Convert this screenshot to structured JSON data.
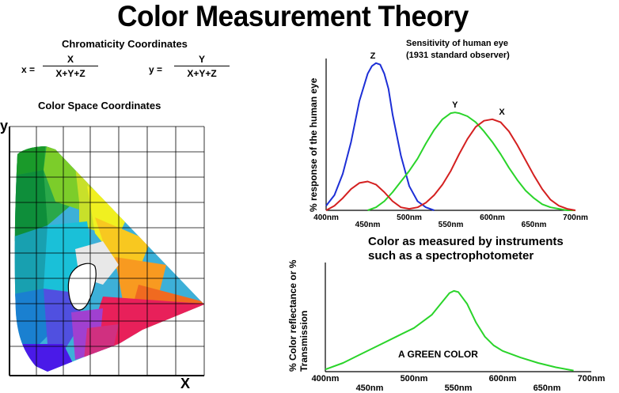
{
  "title": "Color Measurement Theory",
  "chromaticity": {
    "heading": "Chromaticity Coordinates",
    "x_lhs": "x =",
    "x_num": "X",
    "x_den": "X+Y+Z",
    "y_lhs": "y =",
    "y_num": "Y",
    "y_den": "X+Y+Z"
  },
  "color_space": {
    "heading": "Color Space Coordinates",
    "y_axis": "y",
    "x_axis": "X"
  },
  "chart_data": [
    {
      "type": "line",
      "title": "Sensitivity of human eye",
      "subtitle": "(1931 standard observer)",
      "ylabel": "% response of the human eye",
      "xlabel": "",
      "x_tick_labels": [
        "400nm",
        "450nm",
        "500nm",
        "550nm",
        "600nm",
        "650nm",
        "700nm"
      ],
      "x_ticks": [
        400,
        450,
        500,
        550,
        600,
        650,
        700
      ],
      "xlim": [
        400,
        700
      ],
      "ylim": [
        0,
        1.0
      ],
      "series": [
        {
          "name": "Z",
          "color": "#1d2fd6",
          "x": [
            400,
            410,
            420,
            430,
            440,
            450,
            455,
            460,
            465,
            470,
            475,
            480,
            490,
            500,
            510,
            520,
            530
          ],
          "y": [
            0.03,
            0.1,
            0.24,
            0.45,
            0.72,
            0.9,
            0.95,
            0.97,
            0.96,
            0.9,
            0.8,
            0.63,
            0.36,
            0.16,
            0.06,
            0.02,
            0.0
          ]
        },
        {
          "name": "Y",
          "color": "#2ad42a",
          "x": [
            450,
            460,
            470,
            480,
            490,
            500,
            510,
            520,
            530,
            540,
            550,
            555,
            560,
            570,
            580,
            590,
            600,
            610,
            620,
            630,
            640,
            650,
            660,
            670,
            680,
            690,
            700
          ],
          "y": [
            0.0,
            0.02,
            0.06,
            0.12,
            0.19,
            0.26,
            0.34,
            0.44,
            0.53,
            0.6,
            0.64,
            0.645,
            0.64,
            0.62,
            0.58,
            0.52,
            0.45,
            0.37,
            0.28,
            0.2,
            0.13,
            0.08,
            0.04,
            0.02,
            0.01,
            0.0,
            0.0
          ]
        },
        {
          "name": "X",
          "color": "#d42020",
          "x": [
            400,
            410,
            420,
            430,
            440,
            450,
            460,
            470,
            480,
            490,
            500,
            510,
            520,
            530,
            540,
            550,
            560,
            570,
            580,
            590,
            600,
            610,
            620,
            630,
            640,
            650,
            660,
            670,
            680,
            690,
            700
          ],
          "y": [
            0.0,
            0.03,
            0.08,
            0.14,
            0.18,
            0.19,
            0.17,
            0.12,
            0.06,
            0.02,
            0.01,
            0.02,
            0.05,
            0.1,
            0.17,
            0.26,
            0.37,
            0.47,
            0.55,
            0.59,
            0.6,
            0.58,
            0.52,
            0.43,
            0.33,
            0.23,
            0.14,
            0.07,
            0.03,
            0.01,
            0.0
          ]
        }
      ]
    },
    {
      "type": "line",
      "title": "Color as measured by instruments",
      "subtitle": "such as a spectrophotometer",
      "ylabel": "% Color reflectance or % Transmission",
      "xlabel": "",
      "annotation": "A GREEN COLOR",
      "x_tick_labels": [
        "400nm",
        "450nm",
        "500nm",
        "550nm",
        "600nm",
        "650nm",
        "700nm"
      ],
      "x_ticks": [
        400,
        450,
        500,
        550,
        600,
        650,
        700
      ],
      "xlim": [
        400,
        700
      ],
      "ylim": [
        0,
        1.0
      ],
      "series": [
        {
          "color": "#2ad42a",
          "x": [
            400,
            420,
            440,
            460,
            480,
            500,
            520,
            530,
            540,
            545,
            550,
            560,
            570,
            580,
            590,
            600,
            620,
            640,
            660,
            680
          ],
          "y": [
            0.02,
            0.08,
            0.16,
            0.24,
            0.32,
            0.4,
            0.52,
            0.62,
            0.72,
            0.74,
            0.73,
            0.62,
            0.45,
            0.32,
            0.24,
            0.19,
            0.13,
            0.08,
            0.04,
            0.01
          ]
        }
      ]
    }
  ]
}
